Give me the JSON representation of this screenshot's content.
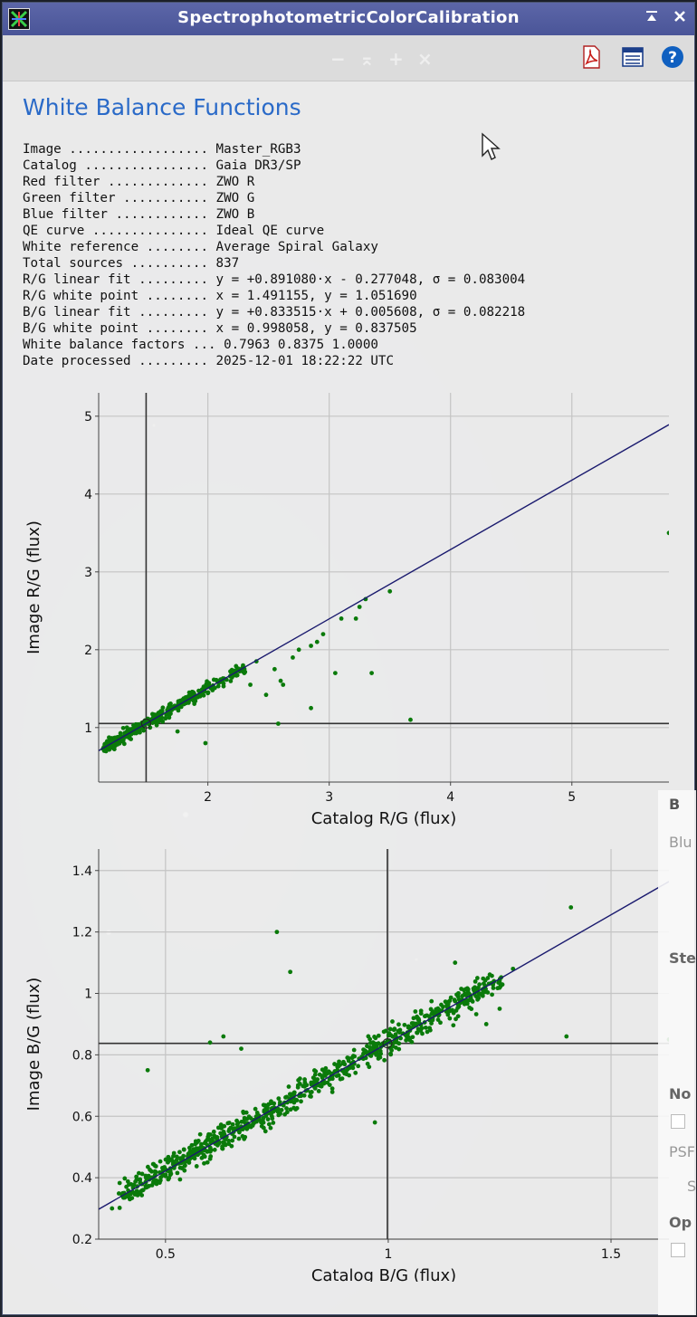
{
  "window": {
    "title": "SpectrophotometricColorCalibration"
  },
  "toolbar": {
    "pdf_icon": "pdf-document-icon",
    "list_icon": "list-view-icon",
    "help_icon": "help-icon"
  },
  "heading": "White Balance Functions",
  "report": [
    {
      "label": "Image ..................",
      "value": "Master_RGB3"
    },
    {
      "label": "Catalog ................",
      "value": "Gaia DR3/SP"
    },
    {
      "label": "Red filter .............",
      "value": "ZWO R"
    },
    {
      "label": "Green filter ...........",
      "value": "ZWO G"
    },
    {
      "label": "Blue filter ............",
      "value": "ZWO B"
    },
    {
      "label": "QE curve ...............",
      "value": "Ideal QE curve"
    },
    {
      "label": "White reference ........",
      "value": "Average Spiral Galaxy"
    },
    {
      "label": "Total sources ..........",
      "value": "837"
    },
    {
      "label": "R/G linear fit .........",
      "value": "y = +0.891080·x - 0.277048, σ = 0.083004"
    },
    {
      "label": "R/G white point ........",
      "value": "x = 1.491155, y = 1.051690"
    },
    {
      "label": "B/G linear fit .........",
      "value": "y = +0.833515·x + 0.005608, σ = 0.082218"
    },
    {
      "label": "B/G white point ........",
      "value": "x = 0.998058, y = 0.837505"
    },
    {
      "label": "White balance factors ...",
      "value": "0.7963 0.8375 1.0000"
    },
    {
      "label": "Date processed .........",
      "value": "2025-12-01 18:22:22 UTC"
    }
  ],
  "side_panel": {
    "letters": [
      "B",
      "Blu",
      "Ste",
      "No",
      "PSF",
      "S",
      "Op"
    ]
  },
  "chart_data": [
    {
      "type": "scatter",
      "xlabel": "Catalog R/G (flux)",
      "ylabel": "Image R/G (flux)",
      "xlim": [
        1.1,
        5.8
      ],
      "ylim": [
        0.3,
        5.3
      ],
      "xticks": [
        2,
        3,
        4,
        5
      ],
      "yticks": [
        1,
        2,
        3,
        4,
        5
      ],
      "grid": true,
      "fit": {
        "slope": 0.89108,
        "intercept": -0.277048
      },
      "white_point": {
        "x": 1.491155,
        "y": 1.05169
      },
      "point_color": "#0a7a0a",
      "line_color": "#1a1a6e",
      "cluster": {
        "x_range": [
          1.15,
          2.3
        ],
        "count": 420,
        "sigma": 0.05
      },
      "outliers": [
        [
          2.35,
          1.55
        ],
        [
          2.48,
          1.42
        ],
        [
          2.55,
          1.75
        ],
        [
          2.62,
          1.55
        ],
        [
          2.7,
          1.9
        ],
        [
          2.75,
          2.0
        ],
        [
          2.85,
          2.05
        ],
        [
          2.9,
          2.1
        ],
        [
          2.95,
          2.2
        ],
        [
          3.05,
          1.7
        ],
        [
          3.1,
          2.4
        ],
        [
          3.25,
          2.55
        ],
        [
          3.3,
          2.65
        ],
        [
          3.35,
          1.7
        ],
        [
          3.5,
          2.75
        ],
        [
          3.22,
          2.4
        ],
        [
          2.58,
          1.05
        ],
        [
          2.85,
          1.25
        ],
        [
          3.67,
          1.1
        ],
        [
          1.98,
          0.8
        ],
        [
          1.75,
          0.95
        ],
        [
          5.8,
          3.5
        ],
        [
          2.3,
          1.7
        ],
        [
          2.4,
          1.85
        ],
        [
          2.6,
          1.6
        ]
      ]
    },
    {
      "type": "scatter",
      "xlabel": "Catalog B/G (flux)",
      "ylabel": "Image B/G (flux)",
      "xlim": [
        0.35,
        1.63
      ],
      "ylim": [
        0.2,
        1.47
      ],
      "xticks": [
        0.5,
        1,
        1.5
      ],
      "yticks": [
        0.2,
        0.4,
        0.6,
        0.8,
        1,
        1.2,
        1.4
      ],
      "grid": true,
      "fit": {
        "slope": 0.833515,
        "intercept": 0.005608
      },
      "white_point": {
        "x": 0.998058,
        "y": 0.837505
      },
      "point_color": "#0a7a0a",
      "line_color": "#1a1a6e",
      "cluster": {
        "x_range": [
          0.4,
          1.25
        ],
        "count": 780,
        "sigma": 0.03
      },
      "outliers": [
        [
          0.38,
          0.3
        ],
        [
          0.42,
          0.33
        ],
        [
          0.45,
          0.36
        ],
        [
          0.48,
          0.38
        ],
        [
          0.5,
          0.41
        ],
        [
          0.55,
          0.47
        ],
        [
          0.58,
          0.5
        ],
        [
          0.6,
          0.84
        ],
        [
          0.63,
          0.86
        ],
        [
          0.67,
          0.82
        ],
        [
          0.78,
          1.07
        ],
        [
          0.75,
          1.2
        ],
        [
          0.46,
          0.75
        ],
        [
          0.97,
          0.58
        ],
        [
          1.22,
          0.9
        ],
        [
          1.25,
          0.95
        ],
        [
          1.28,
          1.08
        ],
        [
          1.4,
          0.86
        ],
        [
          1.41,
          1.28
        ],
        [
          1.63,
          0.85
        ],
        [
          1.15,
          1.1
        ],
        [
          1.2,
          1.05
        ]
      ]
    }
  ]
}
